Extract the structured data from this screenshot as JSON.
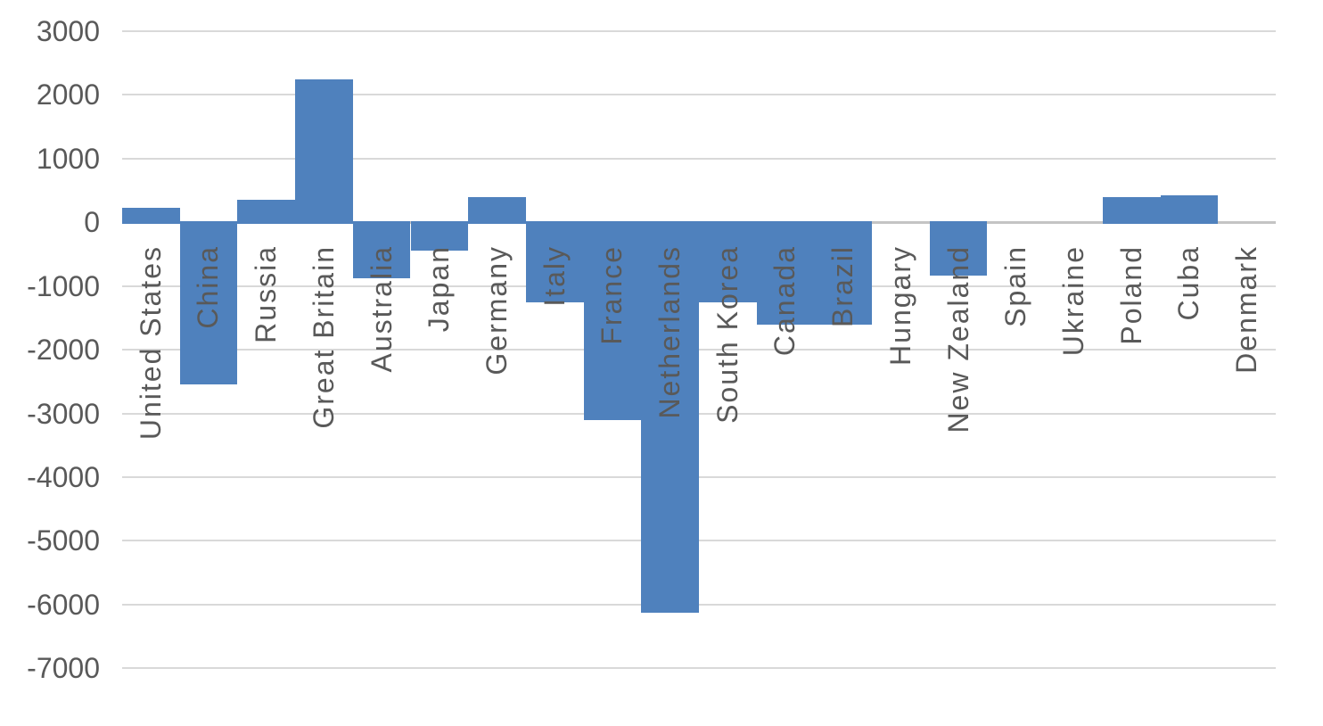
{
  "chart_data": {
    "type": "bar",
    "title": "",
    "xlabel": "",
    "ylabel": "",
    "categories": [
      "United States",
      "China",
      "Russia",
      "Great Britain",
      "Australia",
      "Japan",
      "Germany",
      "Italy",
      "France",
      "Netherlands",
      "South Korea",
      "Canada",
      "Brazil",
      "Hungary",
      "New Zealand",
      "Spain",
      "Ukraine",
      "Poland",
      "Cuba",
      "Denmark"
    ],
    "values": [
      230,
      -2550,
      350,
      2250,
      -880,
      -440,
      400,
      -1250,
      -3100,
      -6130,
      -1260,
      -1600,
      -1600,
      0,
      -830,
      0,
      0,
      390,
      420,
      0
    ],
    "ylim": [
      -7000,
      3000
    ],
    "ytick_step": 1000,
    "ytick_labels": [
      "3000",
      "2000",
      "1000",
      "0",
      "-1000",
      "-2000",
      "-3000",
      "-4000",
      "-5000",
      "-6000",
      "-7000"
    ],
    "grid": true,
    "legend": "none",
    "bar_gap": 0,
    "colors": {
      "bar": "#4F81BD",
      "gridline": "#D9D9D9",
      "axis_line": "#C4C4C4",
      "tick_label": "#595959",
      "category_label": "#595959",
      "background": "#FFFFFF"
    }
  }
}
